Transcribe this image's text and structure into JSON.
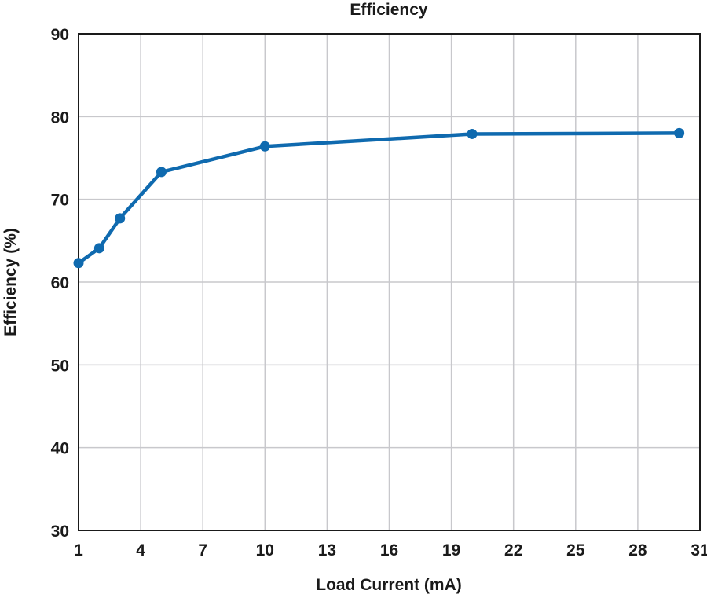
{
  "chart_data": {
    "type": "line",
    "title": "Efficiency",
    "xlabel": "Load Current (mA)",
    "ylabel": "Efficiency (%)",
    "xlim": [
      1,
      31
    ],
    "ylim": [
      30,
      90
    ],
    "x_ticks": [
      1,
      4,
      7,
      10,
      13,
      16,
      19,
      22,
      25,
      28,
      31
    ],
    "y_ticks": [
      30,
      40,
      50,
      60,
      70,
      80,
      90
    ],
    "grid": true,
    "legend": "none",
    "series": [
      {
        "color": "#0f6aaf",
        "x": [
          1,
          2,
          3,
          5,
          10,
          20,
          30
        ],
        "y": [
          62.3,
          64.1,
          67.7,
          73.3,
          76.4,
          77.9,
          78.0
        ]
      }
    ]
  }
}
